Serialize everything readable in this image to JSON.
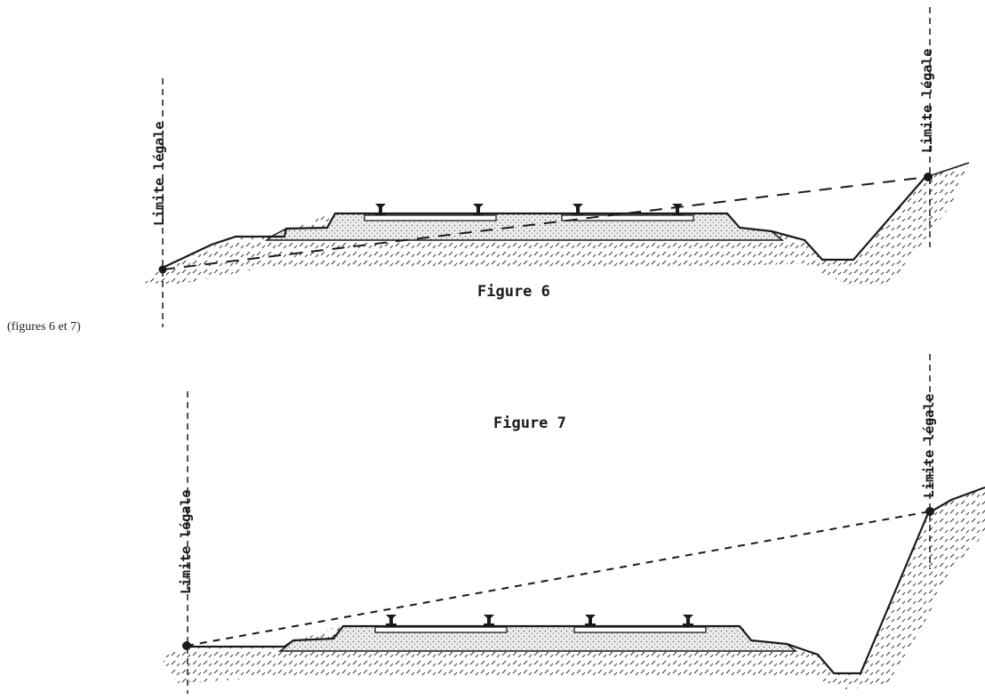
{
  "note": "(figures 6 et 7)",
  "figure6": {
    "caption": "Figure 6",
    "left_limit_label": "Limite légale",
    "right_limit_label": "Limite légale"
  },
  "figure7": {
    "caption": "Figure 7",
    "left_limit_label": "Limite légale",
    "right_limit_label": "Limite légale"
  },
  "colors": {
    "ink": "#1a1a1a",
    "ballast": "#e6e6e6"
  }
}
